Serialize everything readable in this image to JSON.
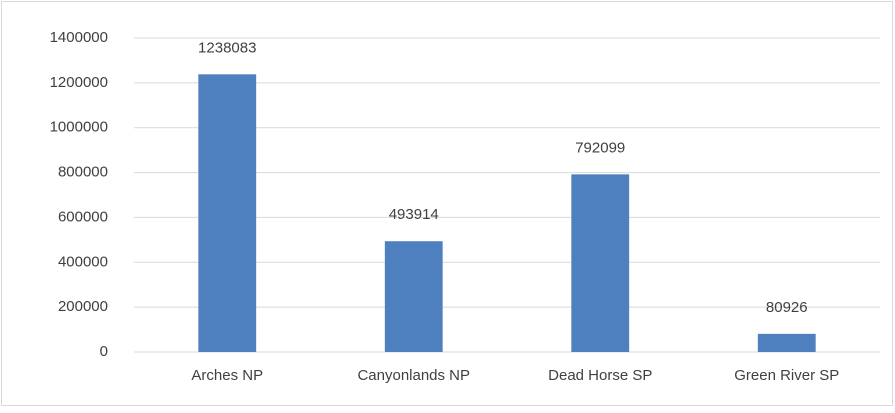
{
  "chart_data": {
    "type": "bar",
    "categories": [
      "Arches NP",
      "Canyonlands NP",
      "Dead Horse SP",
      "Green River SP"
    ],
    "values": [
      1238083,
      493914,
      792099,
      80926
    ],
    "color": "#4e7fbf",
    "ylim": [
      0,
      1400000
    ],
    "yticks": [
      0,
      200000,
      400000,
      600000,
      800000,
      1000000,
      1200000,
      1400000
    ],
    "grid": true
  }
}
